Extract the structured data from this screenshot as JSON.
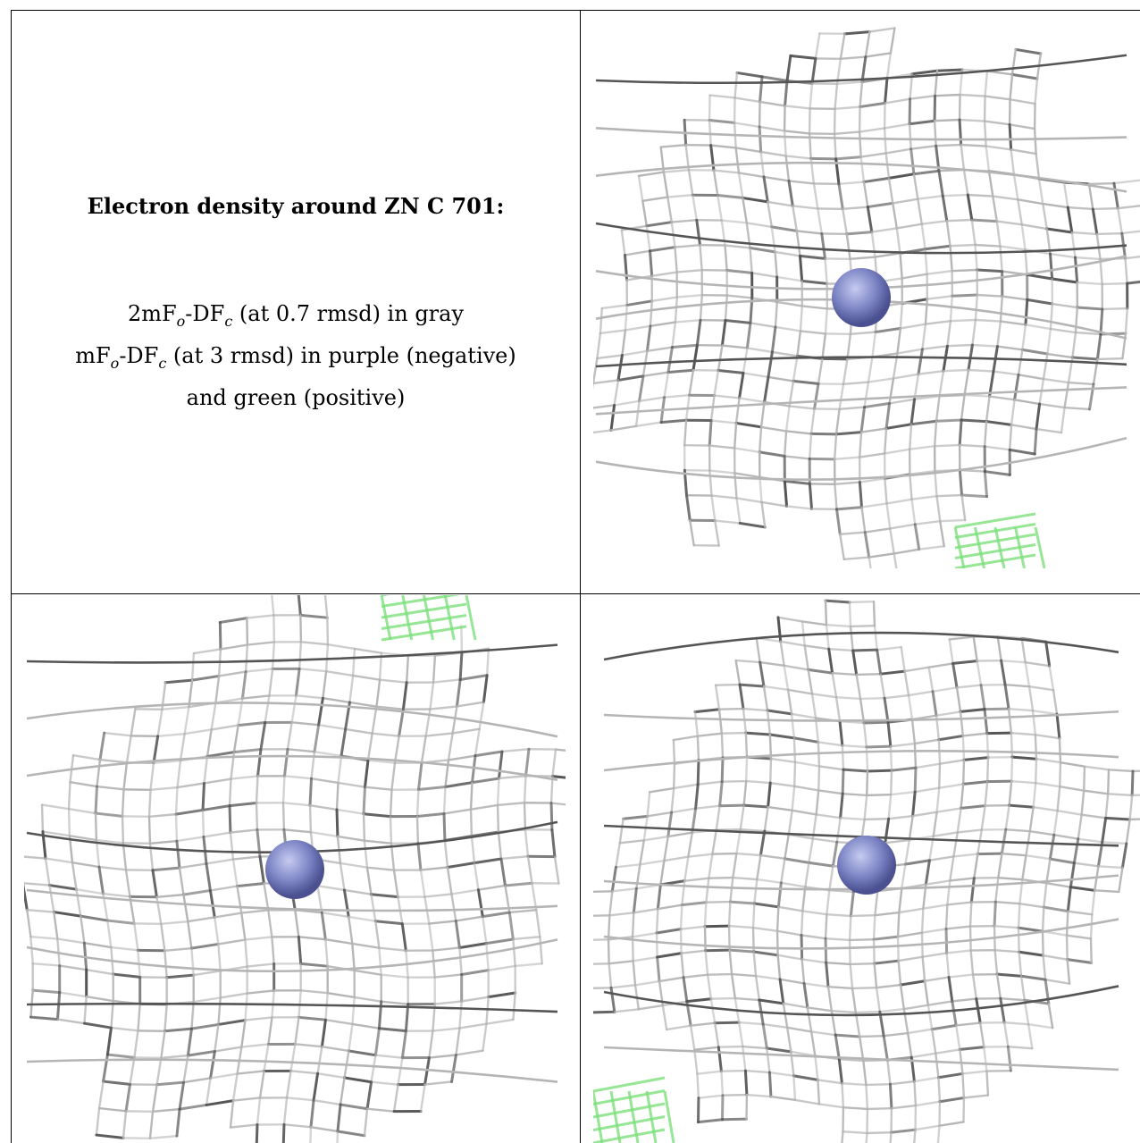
{
  "caption": {
    "title": "Electron density around ZN C 701:",
    "line1": "2mFₒ-DFᶜ (at 0.7 rmsd) in gray",
    "line2": "mFₒ-DFᶜ (at 3 rmsd) in purple (negative)",
    "line3": "and green (positive)"
  },
  "colors": {
    "mesh_gray": "#b5b5b5",
    "mesh_dark": "#555555",
    "positive_green": "#7de07d",
    "zinc_atom": "#7b83c4"
  },
  "panels": [
    {
      "name": "view-1"
    },
    {
      "name": "view-2"
    },
    {
      "name": "view-3"
    }
  ]
}
